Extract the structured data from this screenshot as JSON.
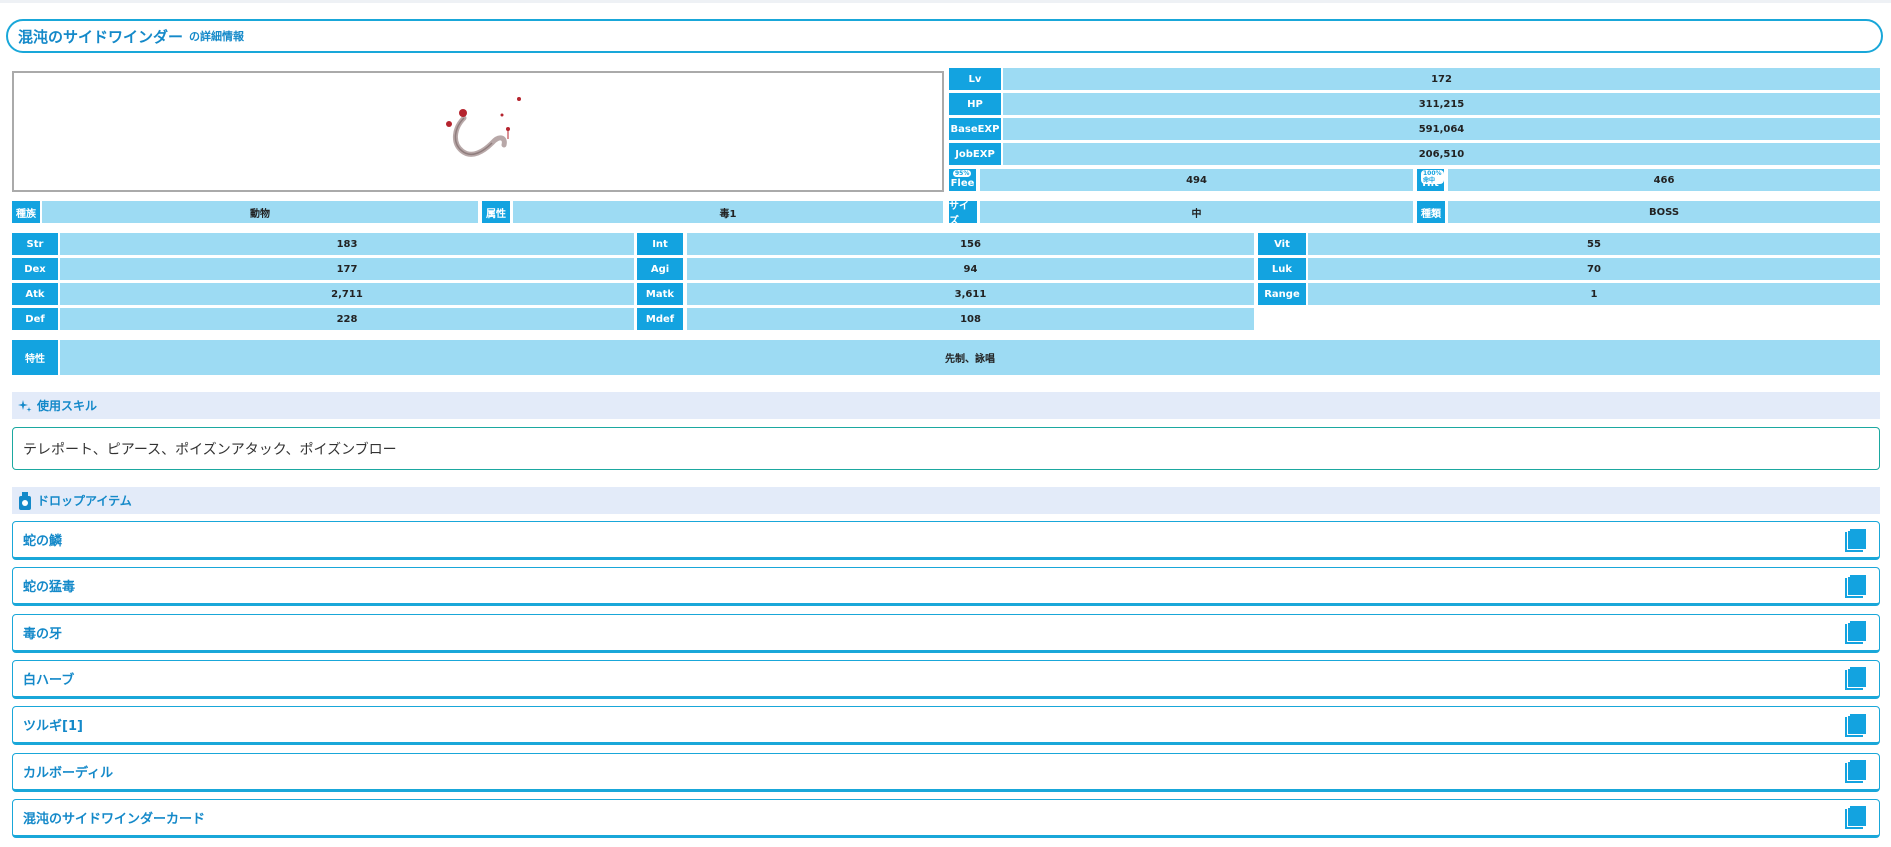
{
  "header": {
    "title": "混沌のサイドワインダー",
    "subtitle": "の詳細情報"
  },
  "stats_top": [
    {
      "label": "Lv",
      "value": "172"
    },
    {
      "label": "HP",
      "value": "311,215"
    },
    {
      "label": "BaseEXP",
      "value": "591,064"
    },
    {
      "label": "JobEXP",
      "value": "206,510"
    }
  ],
  "flee": {
    "label": "Flee",
    "badge": "95%",
    "value": "494"
  },
  "hit": {
    "label": "Hit",
    "badge": "100%命中",
    "value": "466"
  },
  "attributes": [
    {
      "label": "種族",
      "value": "動物"
    },
    {
      "label": "属性",
      "value": "毒1"
    },
    {
      "label": "サイズ",
      "value": "中"
    },
    {
      "label": "種類",
      "value": "BOSS"
    }
  ],
  "params": [
    {
      "label": "Str",
      "value": "183"
    },
    {
      "label": "Int",
      "value": "156"
    },
    {
      "label": "Vit",
      "value": "55"
    },
    {
      "label": "Dex",
      "value": "177"
    },
    {
      "label": "Agi",
      "value": "94"
    },
    {
      "label": "Luk",
      "value": "70"
    },
    {
      "label": "Atk",
      "value": "2,711"
    },
    {
      "label": "Matk",
      "value": "3,611"
    },
    {
      "label": "Range",
      "value": "1"
    },
    {
      "label": "Def",
      "value": "228"
    },
    {
      "label": "Mdef",
      "value": "108"
    }
  ],
  "traits": {
    "label": "特性",
    "value": "先制、詠唱"
  },
  "skills": {
    "heading": "使用スキル",
    "text": "テレポート、ピアース、ポイズンアタック、ポイズンブロー"
  },
  "drops": {
    "heading": "ドロップアイテム",
    "items": [
      "蛇の鱗",
      "蛇の猛毒",
      "毒の牙",
      "白ハーブ",
      "ツルギ[1]",
      "カルボーディル",
      "混沌のサイドワインダーカード"
    ]
  },
  "colors": {
    "accent": "#13a3e0",
    "value_bg": "#9ddbf3",
    "section_bg": "#e3ebf9"
  }
}
